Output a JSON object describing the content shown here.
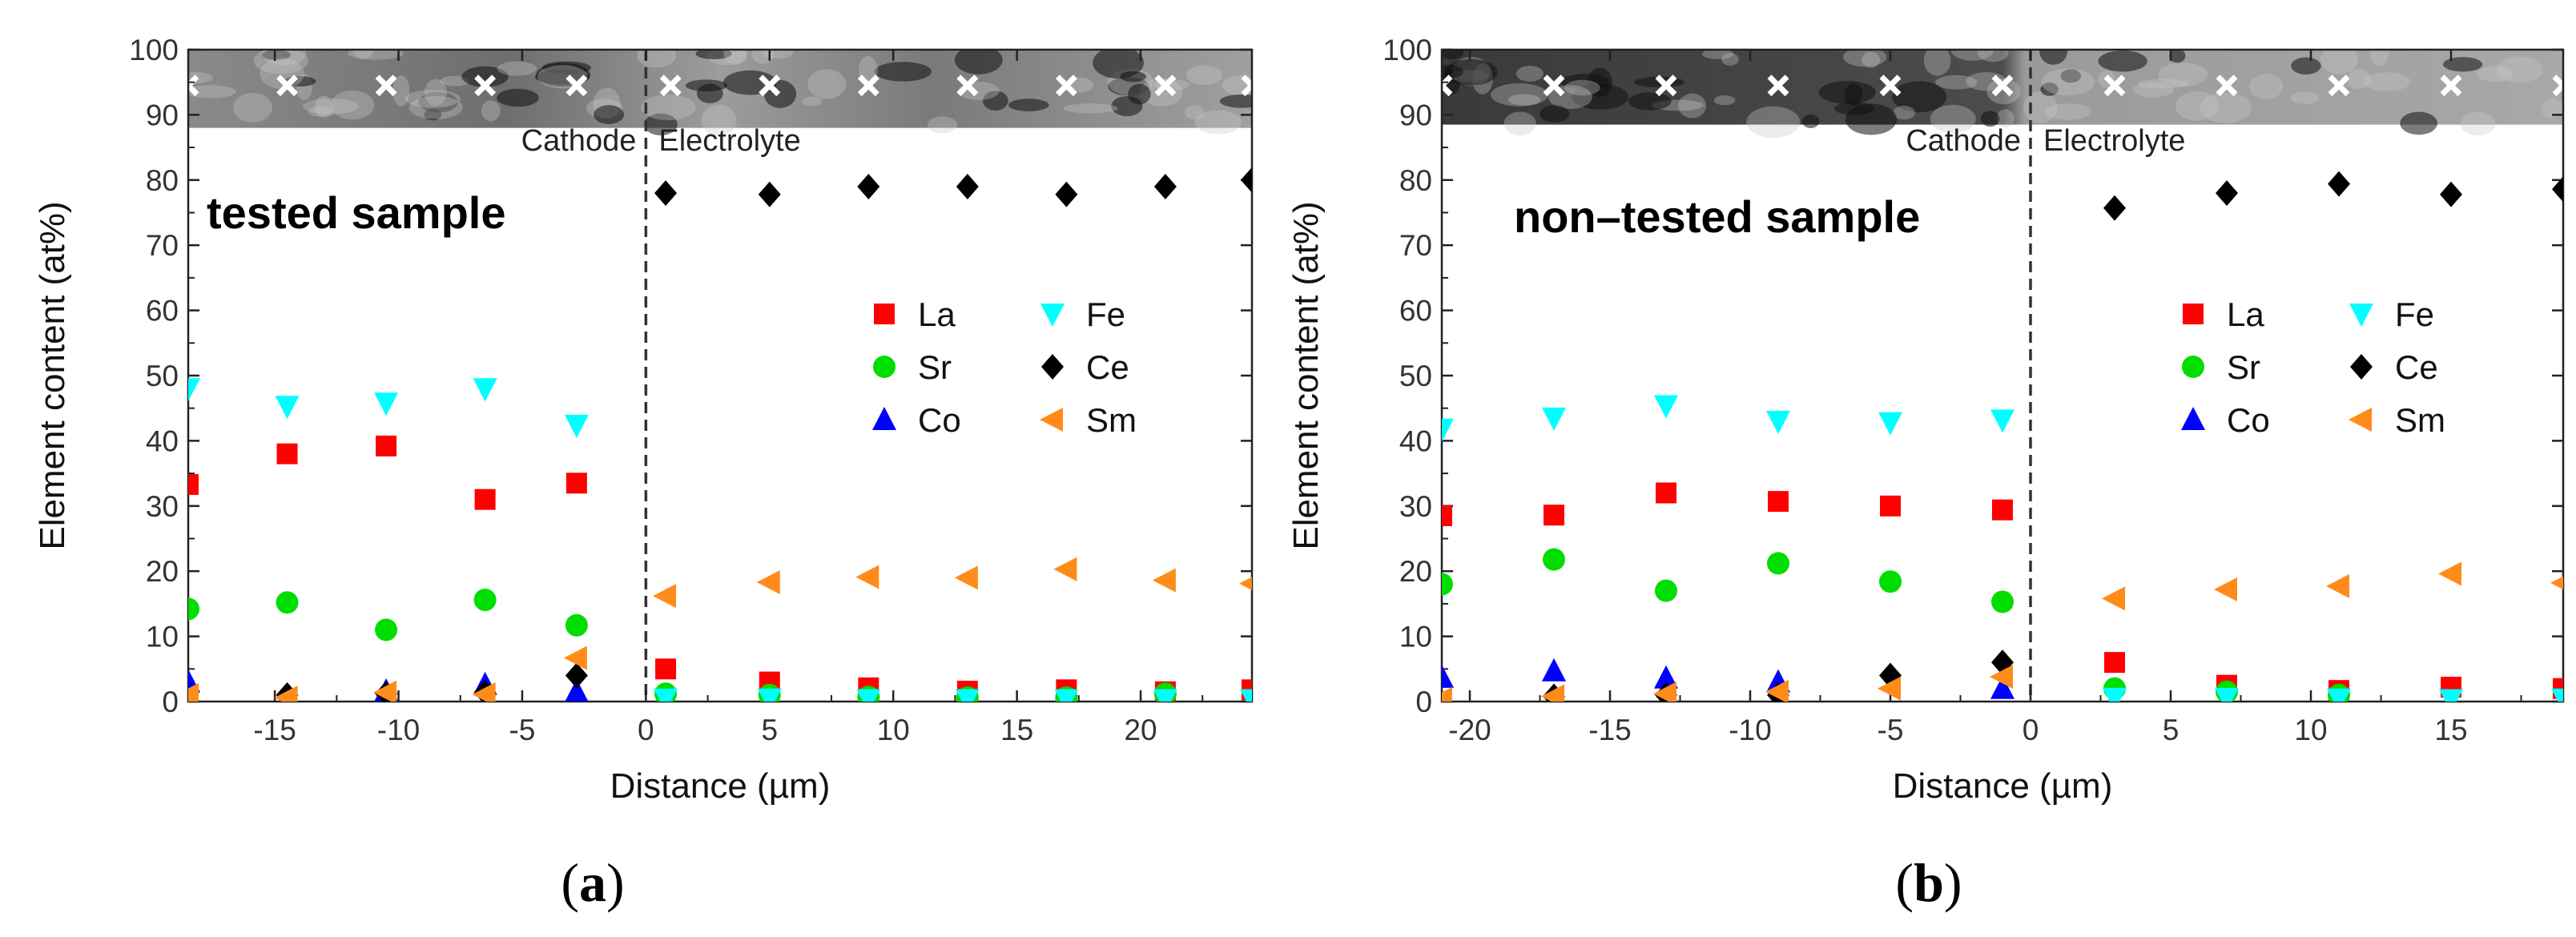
{
  "figure": {
    "panels": [
      {
        "label_open": "(",
        "label_letter": "a",
        "label_close": ")"
      },
      {
        "label_open": "(",
        "label_letter": "b",
        "label_close": ")"
      }
    ]
  },
  "chart_data": [
    {
      "type": "scatter",
      "title": "",
      "sample_label": "tested sample",
      "xlabel": "Distance (µm)",
      "ylabel": "Element content (at%)",
      "xlim": [
        -18.5,
        24.5
      ],
      "ylim": [
        0,
        100
      ],
      "xticks": [
        -15,
        -10,
        -5,
        0,
        5,
        10,
        15,
        20
      ],
      "yticks": [
        0,
        10,
        20,
        30,
        40,
        50,
        60,
        70,
        80,
        90,
        100
      ],
      "grid": false,
      "legend_position": "right",
      "boundary_x": 0,
      "regions": {
        "left": "Cathode",
        "right": "Electrolyte"
      },
      "micrograph_band": [
        88,
        100
      ],
      "measure_points_x": [
        -18.5,
        -14.5,
        -10.5,
        -6.5,
        -2.8,
        1,
        5,
        9,
        13,
        17,
        21,
        24.5
      ],
      "measure_points_y": 94.5,
      "series": [
        {
          "name": "La",
          "color": "#ff0000",
          "marker": "square",
          "x": [
            -18.5,
            -14.5,
            -10.5,
            -6.5,
            -2.8,
            0.8,
            5,
            9,
            13,
            17,
            21,
            24.5
          ],
          "y": [
            33.3,
            38,
            39.2,
            31,
            33.5,
            5,
            3,
            2.1,
            1.6,
            1.8,
            1.5,
            1.8
          ]
        },
        {
          "name": "Sr",
          "color": "#00dd00",
          "marker": "circle",
          "x": [
            -18.5,
            -14.5,
            -10.5,
            -6.5,
            -2.8,
            0.8,
            5,
            9,
            13,
            17,
            21
          ],
          "y": [
            14.2,
            15.2,
            11,
            15.6,
            11.7,
            1.2,
            1,
            0.7,
            0.6,
            0.6,
            1.2
          ]
        },
        {
          "name": "Co",
          "color": "#0000ff",
          "marker": "triangle-up",
          "x": [
            -18.5,
            -10.5,
            -6.5,
            -2.8
          ],
          "y": [
            3,
            1.6,
            2.6,
            1.5
          ]
        },
        {
          "name": "Fe",
          "color": "#00ffff",
          "marker": "triangle-down",
          "x": [
            -18.5,
            -14.5,
            -10.5,
            -6.5,
            -2.8,
            0.8,
            5,
            9,
            13,
            17,
            21,
            24.5
          ],
          "y": [
            48,
            45.3,
            45.8,
            48,
            42.4,
            0.4,
            0.4,
            0.3,
            0.3,
            0.3,
            0.3,
            0.3
          ]
        },
        {
          "name": "Ce",
          "color": "#000000",
          "marker": "diamond",
          "x": [
            -14.5,
            -10.5,
            -6.5,
            -2.8,
            0.8,
            5,
            9,
            13,
            17,
            21,
            24.5
          ],
          "y": [
            1,
            1.2,
            1.4,
            4,
            78,
            77.8,
            79,
            79,
            77.8,
            79,
            80
          ]
        },
        {
          "name": "Sm",
          "color": "#ff8c1a",
          "marker": "triangle-left",
          "x": [
            -18.5,
            -14.5,
            -10.5,
            -6.5,
            -2.8,
            0.8,
            5,
            9,
            13,
            17,
            21,
            24.5
          ],
          "y": [
            1,
            0.6,
            1.4,
            1.1,
            6.7,
            16.2,
            18.3,
            19.1,
            19,
            20.3,
            18.6,
            18.1
          ]
        }
      ]
    },
    {
      "type": "scatter",
      "title": "",
      "sample_label": "non–tested sample",
      "xlabel": "Distance (µm)",
      "ylabel": "Element content (at%)",
      "xlim": [
        -21,
        19
      ],
      "ylim": [
        0,
        100
      ],
      "xticks": [
        -20,
        -15,
        -10,
        -5,
        0,
        5,
        10,
        15
      ],
      "yticks": [
        0,
        10,
        20,
        30,
        40,
        50,
        60,
        70,
        80,
        90,
        100
      ],
      "grid": false,
      "legend_position": "right",
      "boundary_x": 0,
      "regions": {
        "left": "Cathode",
        "right": "Electrolyte"
      },
      "micrograph_band": [
        88.5,
        100
      ],
      "measure_points_x": [
        -21,
        -17,
        -13,
        -9,
        -5,
        -1,
        3,
        7,
        11,
        15,
        19
      ],
      "measure_points_y": 94.5,
      "series": [
        {
          "name": "La",
          "color": "#ff0000",
          "marker": "square",
          "x": [
            -21,
            -17,
            -13,
            -9,
            -5,
            -1,
            3,
            7,
            11,
            15,
            19
          ],
          "y": [
            28.5,
            28.6,
            32,
            30.7,
            30,
            29.4,
            6,
            2.5,
            1.7,
            2.2,
            2
          ]
        },
        {
          "name": "Sr",
          "color": "#00dd00",
          "marker": "circle",
          "x": [
            -21,
            -17,
            -13,
            -9,
            -5,
            -1,
            3,
            7,
            11
          ],
          "y": [
            18,
            21.8,
            17,
            21.2,
            18.4,
            15.3,
            2,
            1.5,
            1
          ]
        },
        {
          "name": "Co",
          "color": "#0000ff",
          "marker": "triangle-up",
          "x": [
            -21,
            -17,
            -13,
            -9,
            -1
          ],
          "y": [
            3.7,
            4.7,
            3.6,
            3,
            2
          ]
        },
        {
          "name": "Fe",
          "color": "#00ffff",
          "marker": "triangle-down",
          "x": [
            -21,
            -17,
            -13,
            -9,
            -5,
            -1,
            3,
            7,
            11,
            15,
            19
          ],
          "y": [
            41.8,
            43.5,
            45.4,
            43,
            42.8,
            43.2,
            0.5,
            0.5,
            0.4,
            0.3,
            0.4
          ]
        },
        {
          "name": "Ce",
          "color": "#000000",
          "marker": "diamond",
          "x": [
            -17,
            -13,
            -9,
            -5,
            -1,
            3,
            7,
            11,
            15,
            19
          ],
          "y": [
            0.8,
            1,
            1,
            4,
            6,
            75.7,
            78,
            79.4,
            77.8,
            78.6
          ]
        },
        {
          "name": "Sm",
          "color": "#ff8c1a",
          "marker": "triangle-left",
          "x": [
            -21,
            -17,
            -13,
            -9,
            -5,
            -1,
            3,
            7,
            11,
            15,
            19
          ],
          "y": [
            0.4,
            0.8,
            1.2,
            1.5,
            2,
            3.8,
            15.8,
            17.2,
            17.7,
            19.6,
            18.2
          ]
        }
      ]
    }
  ]
}
